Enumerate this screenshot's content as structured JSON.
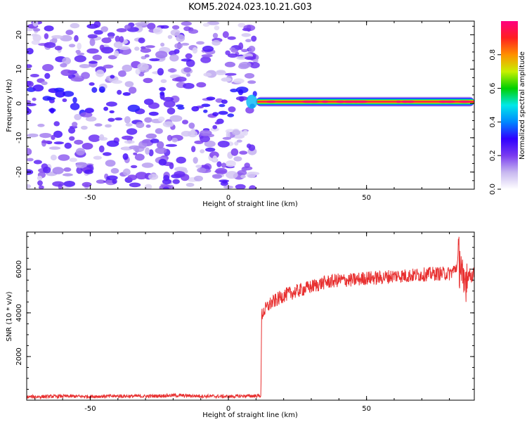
{
  "figure": {
    "title": "KOM5.2024.023.10.21.G03"
  },
  "chart_data": [
    {
      "type": "heatmap",
      "xlabel": "Height of straight line (km)",
      "ylabel": "Frequency (Hz)",
      "xlim": [
        -73,
        89
      ],
      "ylim": [
        -25,
        24
      ],
      "xticks": [
        -50,
        0,
        50
      ],
      "yticks": [
        -20,
        -10,
        0,
        10,
        20
      ],
      "colorbar": {
        "label": "Normalized spectral amplitude",
        "range": [
          0,
          1
        ],
        "ticks": [
          0.0,
          0.2,
          0.4,
          0.6,
          0.8
        ],
        "colors": [
          "#ffffff",
          "#c8b8f0",
          "#7a3cf0",
          "#3000ff",
          "#0088ff",
          "#00e8e8",
          "#00d000",
          "#c8f000",
          "#ff9000",
          "#ff2020",
          "#ff0080"
        ]
      },
      "description_values": {
        "noise_region_x": [
          -73,
          10
        ],
        "signal_start_x": 10,
        "signal_frequency_hz": 0.5,
        "signal_amplitude": 0.95
      },
      "grid": false
    },
    {
      "type": "line",
      "xlabel": "Height of straight line (km)",
      "ylabel": "SNR (10 * v/v)",
      "xlim": [
        -73,
        89
      ],
      "ylim": [
        0,
        7700
      ],
      "xticks": [
        -50,
        0,
        50
      ],
      "yticks": [
        2000,
        4000,
        6000
      ],
      "series": [
        {
          "color": "#e83030",
          "x": [
            -73,
            -60,
            -50,
            -40,
            -30,
            -20,
            -10,
            0,
            5,
            11.8,
            12,
            13,
            15,
            20,
            25,
            30,
            35,
            40,
            45,
            50,
            55,
            60,
            65,
            70,
            75,
            80,
            82,
            84,
            85,
            86,
            88,
            89
          ],
          "values": [
            150,
            180,
            170,
            190,
            180,
            220,
            190,
            170,
            190,
            200,
            3900,
            4100,
            4400,
            4800,
            5000,
            5200,
            5400,
            5500,
            5500,
            5600,
            5600,
            5700,
            5700,
            5750,
            5800,
            5800,
            6000,
            6500,
            4800,
            5800,
            5700,
            5800
          ]
        }
      ],
      "grid": false
    }
  ]
}
